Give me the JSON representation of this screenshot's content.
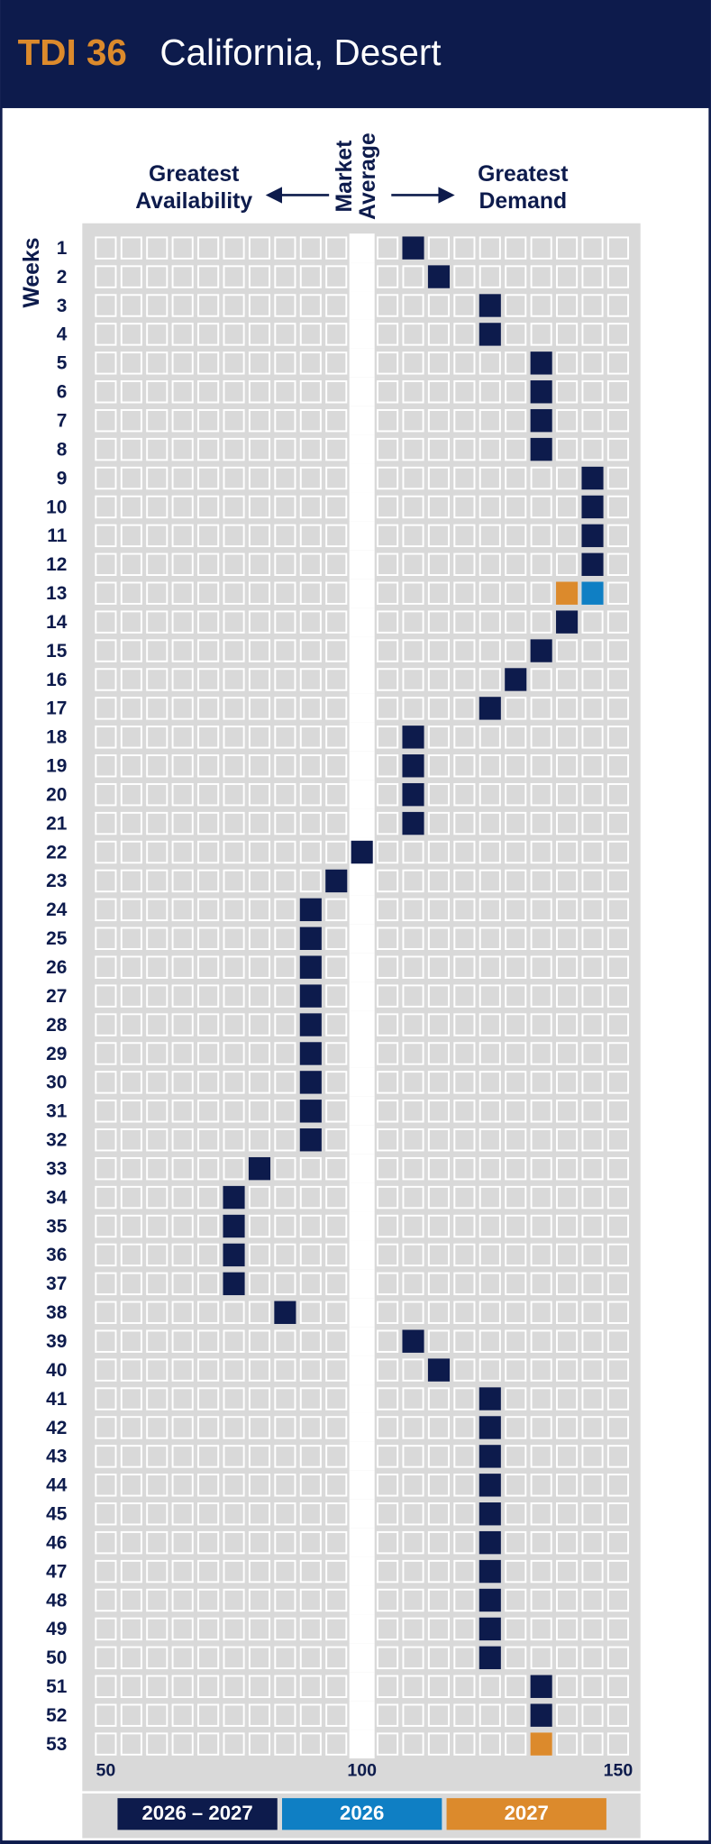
{
  "chart_data": {
    "type": "heatgrid",
    "title_code": "TDI 36",
    "title": "California, Desert",
    "annotations": {
      "left": [
        "Greatest",
        "Availability"
      ],
      "center": [
        "Market",
        "Average"
      ],
      "right": [
        "Greatest",
        "Demand"
      ]
    },
    "y_label": "Weeks",
    "categories": [
      1,
      2,
      3,
      4,
      5,
      6,
      7,
      8,
      9,
      10,
      11,
      12,
      13,
      14,
      15,
      16,
      17,
      18,
      19,
      20,
      21,
      22,
      23,
      24,
      25,
      26,
      27,
      28,
      29,
      30,
      31,
      32,
      33,
      34,
      35,
      36,
      37,
      38,
      39,
      40,
      41,
      42,
      43,
      44,
      45,
      46,
      47,
      48,
      49,
      50,
      51,
      52,
      53
    ],
    "series": [
      {
        "name": "2026 – 2027",
        "color": "#0d1b4c",
        "values": [
          110,
          115,
          125,
          125,
          135,
          135,
          135,
          135,
          145,
          145,
          145,
          145,
          null,
          140,
          135,
          130,
          125,
          110,
          110,
          110,
          110,
          100,
          95,
          90,
          90,
          90,
          90,
          90,
          90,
          90,
          90,
          90,
          80,
          75,
          75,
          75,
          75,
          85,
          110,
          115,
          125,
          125,
          125,
          125,
          125,
          125,
          125,
          125,
          125,
          125,
          135,
          135,
          null
        ]
      },
      {
        "name": "2026",
        "color": "#0f7fc4",
        "values": [
          null,
          null,
          null,
          null,
          null,
          null,
          null,
          null,
          null,
          null,
          null,
          null,
          145,
          null,
          null,
          null,
          null,
          null,
          null,
          null,
          null,
          null,
          null,
          null,
          null,
          null,
          null,
          null,
          null,
          null,
          null,
          null,
          null,
          null,
          null,
          null,
          null,
          null,
          null,
          null,
          null,
          null,
          null,
          null,
          null,
          null,
          null,
          null,
          null,
          null,
          null,
          null,
          null
        ]
      },
      {
        "name": "2027",
        "color": "#dc8a2c",
        "values": [
          null,
          null,
          null,
          null,
          null,
          null,
          null,
          null,
          null,
          null,
          null,
          null,
          140,
          null,
          null,
          null,
          null,
          null,
          null,
          null,
          null,
          null,
          null,
          null,
          null,
          null,
          null,
          null,
          null,
          null,
          null,
          null,
          null,
          null,
          null,
          null,
          null,
          null,
          null,
          null,
          null,
          null,
          null,
          null,
          null,
          null,
          null,
          null,
          null,
          null,
          null,
          null,
          135
        ]
      }
    ],
    "xlim": [
      50,
      150
    ],
    "xticks": [
      50,
      100,
      150
    ]
  }
}
